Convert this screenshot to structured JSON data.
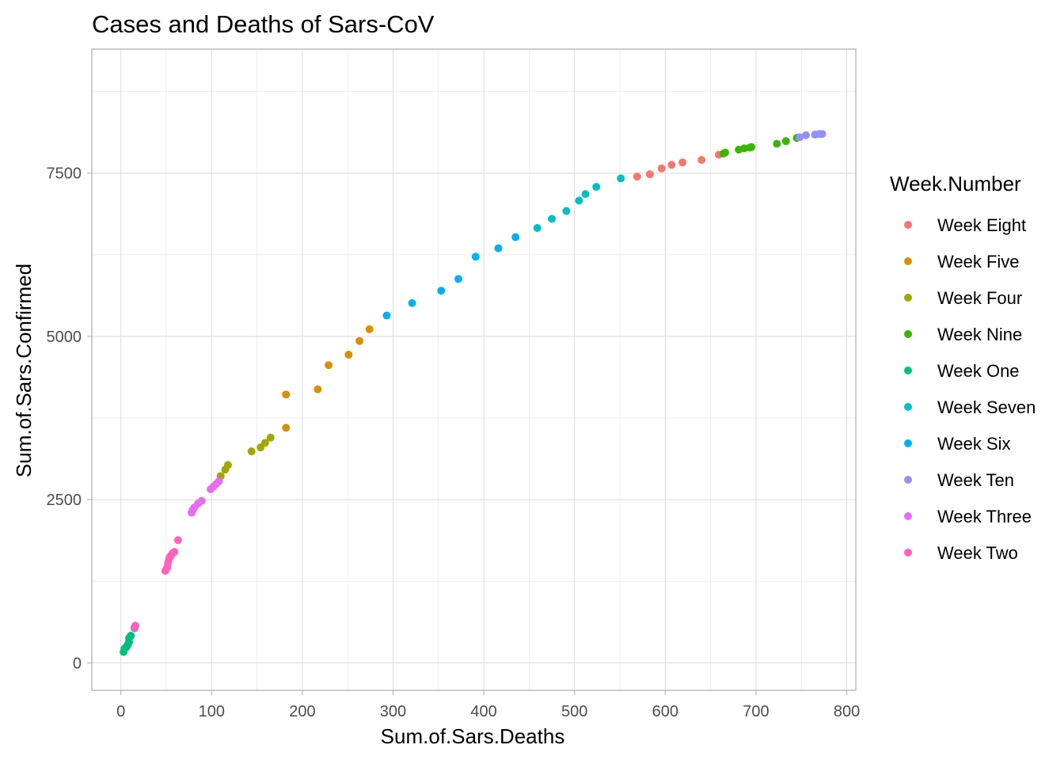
{
  "chart_data": {
    "type": "scatter",
    "title": "Cases and Deaths of Sars-CoV",
    "xlabel": "Sum.of.Sars.Deaths",
    "ylabel": "Sum.of.Sars.Confirmed",
    "xlim": [
      -32,
      810
    ],
    "ylim": [
      -420,
      9400
    ],
    "x_ticks": [
      0,
      100,
      200,
      300,
      400,
      500,
      600,
      700,
      800
    ],
    "y_ticks": [
      0,
      2500,
      5000,
      7500
    ],
    "grid": true,
    "legend_title": "Week.Number",
    "legend_position": "right",
    "series": [
      {
        "name": "Week Eight",
        "color": "#F8766D",
        "x": [
          569,
          583,
          596,
          607,
          619,
          640,
          659
        ],
        "y": [
          7447,
          7483,
          7572,
          7628,
          7664,
          7703,
          7782
        ]
      },
      {
        "name": "Week Five",
        "color": "#D89000",
        "x": [
          182,
          182,
          217,
          229,
          251,
          263,
          274
        ],
        "y": [
          3600,
          4110,
          4190,
          4560,
          4720,
          4930,
          5110
        ]
      },
      {
        "name": "Week Four",
        "color": "#A3A500",
        "x": [
          108,
          110,
          115,
          118,
          144,
          154,
          159,
          165
        ],
        "y": [
          2780,
          2860,
          2960,
          3030,
          3240,
          3300,
          3370,
          3450
        ]
      },
      {
        "name": "Week Nine",
        "color": "#39B600",
        "x": [
          664,
          666,
          681,
          687,
          693,
          695,
          723,
          733,
          745
        ],
        "y": [
          7800,
          7815,
          7860,
          7880,
          7890,
          7900,
          7950,
          7990,
          8040
        ]
      },
      {
        "name": "Week One",
        "color": "#00BF7D",
        "x": [
          3,
          4,
          5,
          6,
          7,
          8,
          9,
          9,
          10,
          11,
          15
        ],
        "y": [
          167,
          219,
          230,
          240,
          264,
          290,
          320,
          380,
          400,
          416,
          530
        ]
      },
      {
        "name": "Week Seven",
        "color": "#00BFC4",
        "x": [
          459,
          475,
          491,
          505,
          512,
          524,
          551
        ],
        "y": [
          6660,
          6800,
          6920,
          7080,
          7180,
          7290,
          7420
        ]
      },
      {
        "name": "Week Six",
        "color": "#00B0F6",
        "x": [
          293,
          321,
          353,
          372,
          391,
          416,
          435
        ],
        "y": [
          5320,
          5510,
          5700,
          5880,
          6220,
          6350,
          6520
        ]
      },
      {
        "name": "Week Ten",
        "color": "#9590FF",
        "x": [
          748,
          755,
          765,
          770,
          773
        ],
        "y": [
          8050,
          8080,
          8090,
          8100,
          8100
        ]
      },
      {
        "name": "Week Three",
        "color": "#E76BF3",
        "x": [
          78,
          79,
          81,
          85,
          89,
          99,
          102,
          105,
          108
        ],
        "y": [
          2300,
          2340,
          2380,
          2440,
          2480,
          2660,
          2700,
          2740,
          2780
        ]
      },
      {
        "name": "Week Two",
        "color": "#FF62BC",
        "x": [
          15,
          16,
          49,
          51,
          52,
          53,
          54,
          55,
          57,
          59,
          63
        ],
        "y": [
          540,
          570,
          1410,
          1460,
          1530,
          1590,
          1620,
          1640,
          1680,
          1700,
          1880
        ]
      }
    ]
  }
}
